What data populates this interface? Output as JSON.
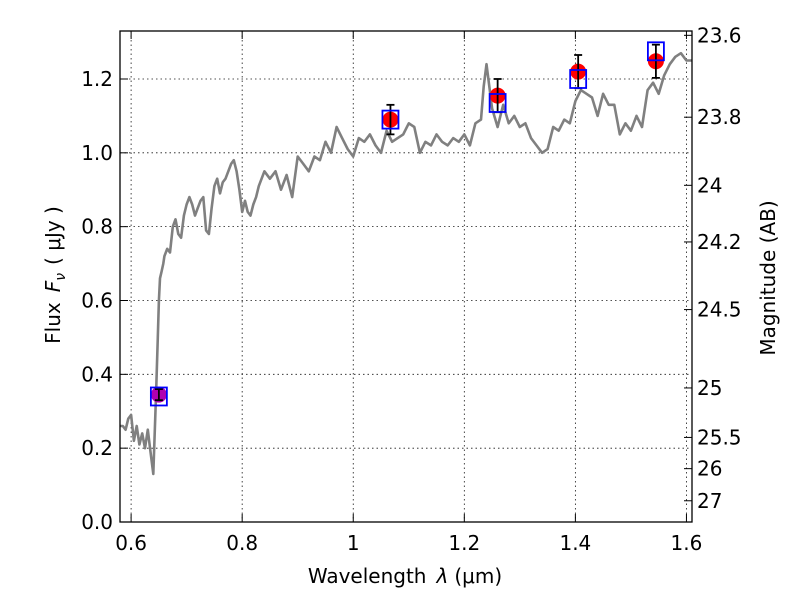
{
  "chart_data": {
    "type": "scatter",
    "xlabel_text": "Wavelength",
    "xlabel_symbol": "λ",
    "xlabel_unit": "(μm)",
    "ylabel_text": "Flux",
    "ylabel_symbol": "F",
    "ylabel_sub": "ν",
    "ylabel_unit": "( μJy )",
    "y2label": "Magnitude (AB)",
    "xlim": [
      0.58,
      1.61
    ],
    "ylim": [
      0.0,
      1.33
    ],
    "x_ticks": [
      0.6,
      0.8,
      1.0,
      1.2,
      1.4,
      1.6
    ],
    "x_tick_labels": [
      "0.6",
      "0.8",
      "1",
      "1.2",
      "1.4",
      "1.6"
    ],
    "y_ticks": [
      0.0,
      0.2,
      0.4,
      0.6,
      0.8,
      1.0,
      1.2
    ],
    "y_tick_labels": [
      "0.0",
      "0.2",
      "0.4",
      "0.6",
      "0.8",
      "1.0",
      "1.2"
    ],
    "mag_ticks": [
      {
        "label": "23.6",
        "flux": 1.3183
      },
      {
        "label": "23.8",
        "flux": 1.0965
      },
      {
        "label": "24",
        "flux": 0.912
      },
      {
        "label": "24.2",
        "flux": 0.7586
      },
      {
        "label": "24.5",
        "flux": 0.5754
      },
      {
        "label": "25",
        "flux": 0.3631
      },
      {
        "label": "25.5",
        "flux": 0.2291
      },
      {
        "label": "26",
        "flux": 0.1445
      },
      {
        "label": "27",
        "flux": 0.0575
      }
    ],
    "grid": true,
    "colors": {
      "template": "#808080",
      "observed": "#ff0000",
      "observed_first": "#b000b0",
      "model": "#0000ff",
      "error": "#000000"
    },
    "series": [
      {
        "name": "template_sed",
        "type": "line",
        "x": [
          0.58,
          0.585,
          0.59,
          0.595,
          0.6,
          0.605,
          0.61,
          0.615,
          0.62,
          0.625,
          0.63,
          0.635,
          0.64,
          0.645,
          0.648,
          0.65,
          0.652,
          0.655,
          0.658,
          0.66,
          0.665,
          0.67,
          0.675,
          0.68,
          0.685,
          0.69,
          0.695,
          0.7,
          0.705,
          0.71,
          0.715,
          0.72,
          0.725,
          0.73,
          0.735,
          0.74,
          0.745,
          0.75,
          0.755,
          0.76,
          0.765,
          0.77,
          0.775,
          0.78,
          0.785,
          0.79,
          0.795,
          0.8,
          0.805,
          0.81,
          0.815,
          0.82,
          0.825,
          0.83,
          0.84,
          0.85,
          0.86,
          0.87,
          0.88,
          0.89,
          0.9,
          0.91,
          0.92,
          0.93,
          0.94,
          0.95,
          0.96,
          0.97,
          0.98,
          0.99,
          1.0,
          1.01,
          1.02,
          1.03,
          1.04,
          1.05,
          1.06,
          1.07,
          1.08,
          1.09,
          1.1,
          1.11,
          1.12,
          1.13,
          1.14,
          1.15,
          1.16,
          1.17,
          1.18,
          1.19,
          1.2,
          1.21,
          1.22,
          1.23,
          1.235,
          1.24,
          1.25,
          1.26,
          1.27,
          1.28,
          1.29,
          1.3,
          1.31,
          1.32,
          1.33,
          1.34,
          1.35,
          1.36,
          1.37,
          1.38,
          1.39,
          1.4,
          1.41,
          1.42,
          1.43,
          1.44,
          1.45,
          1.46,
          1.47,
          1.48,
          1.49,
          1.5,
          1.51,
          1.52,
          1.53,
          1.54,
          1.55,
          1.56,
          1.57,
          1.58,
          1.59,
          1.6,
          1.61
        ],
        "y": [
          0.26,
          0.26,
          0.25,
          0.28,
          0.29,
          0.22,
          0.26,
          0.21,
          0.24,
          0.2,
          0.25,
          0.19,
          0.13,
          0.35,
          0.5,
          0.6,
          0.66,
          0.68,
          0.7,
          0.72,
          0.74,
          0.73,
          0.8,
          0.82,
          0.78,
          0.77,
          0.83,
          0.86,
          0.88,
          0.86,
          0.83,
          0.85,
          0.87,
          0.88,
          0.79,
          0.78,
          0.85,
          0.91,
          0.93,
          0.89,
          0.92,
          0.93,
          0.95,
          0.97,
          0.98,
          0.95,
          0.9,
          0.84,
          0.87,
          0.84,
          0.83,
          0.86,
          0.88,
          0.91,
          0.95,
          0.93,
          0.95,
          0.9,
          0.94,
          0.88,
          0.99,
          0.97,
          0.95,
          0.99,
          0.98,
          1.03,
          1.0,
          1.07,
          1.04,
          1.01,
          0.99,
          1.04,
          1.03,
          1.05,
          1.02,
          1.0,
          1.06,
          1.03,
          1.04,
          1.05,
          1.08,
          1.07,
          1.0,
          1.03,
          1.02,
          1.05,
          1.03,
          1.02,
          1.04,
          1.03,
          1.05,
          1.02,
          1.08,
          1.09,
          1.18,
          1.24,
          1.12,
          1.07,
          1.13,
          1.08,
          1.1,
          1.07,
          1.08,
          1.04,
          1.02,
          1.0,
          1.01,
          1.07,
          1.06,
          1.09,
          1.08,
          1.14,
          1.17,
          1.16,
          1.15,
          1.1,
          1.16,
          1.13,
          1.13,
          1.05,
          1.08,
          1.06,
          1.1,
          1.07,
          1.17,
          1.19,
          1.16,
          1.21,
          1.24,
          1.26,
          1.27,
          1.25,
          1.25
        ]
      },
      {
        "name": "observed_photometry",
        "type": "scatter",
        "x": [
          0.65,
          1.067,
          1.26,
          1.405,
          1.545
        ],
        "y": [
          0.345,
          1.09,
          1.155,
          1.22,
          1.248
        ],
        "yerr": [
          0.015,
          0.04,
          0.045,
          0.045,
          0.045
        ]
      },
      {
        "name": "model_photometry",
        "type": "scatter",
        "x": [
          0.65,
          1.067,
          1.26,
          1.405,
          1.545
        ],
        "y": [
          0.34,
          1.09,
          1.135,
          1.2,
          1.275
        ]
      }
    ]
  }
}
